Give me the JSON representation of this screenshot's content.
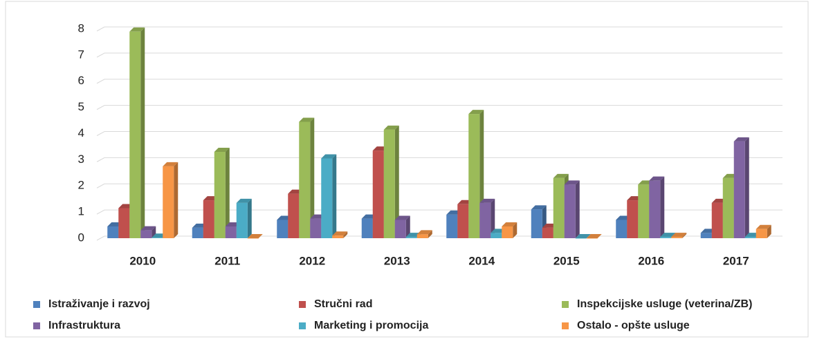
{
  "chart_data": {
    "type": "bar3d",
    "categories": [
      "2010",
      "2011",
      "2012",
      "2013",
      "2014",
      "2015",
      "2016",
      "2017"
    ],
    "series": [
      {
        "name": "Istraživanje i razvoj",
        "color": "#4f81bd",
        "values": [
          0.45,
          0.4,
          0.7,
          0.75,
          0.9,
          1.1,
          0.7,
          0.2
        ]
      },
      {
        "name": "Stručni rad",
        "color": "#c0504d",
        "values": [
          1.15,
          1.45,
          1.7,
          3.35,
          1.3,
          0.4,
          1.45,
          1.35
        ]
      },
      {
        "name": "Inspekcijske usluge (veterina/ZB)",
        "color": "#9bbb59",
        "values": [
          7.9,
          3.3,
          4.45,
          4.15,
          4.75,
          2.3,
          2.05,
          2.3
        ]
      },
      {
        "name": "Infrastruktura",
        "color": "#8064a2",
        "values": [
          0.3,
          0.45,
          0.75,
          0.7,
          1.35,
          2.05,
          2.2,
          3.7
        ]
      },
      {
        "name": "Marketing i promocija",
        "color": "#4bacc6",
        "values": [
          0.02,
          1.35,
          3.05,
          0.05,
          0.2,
          0,
          0.05,
          0.05
        ]
      },
      {
        "name": "Ostalo - opšte usluge",
        "color": "#f79646",
        "values": [
          2.75,
          0,
          0.1,
          0.15,
          0.45,
          0,
          0.05,
          0.35
        ]
      }
    ],
    "ylim": [
      0,
      8
    ],
    "yticks": [
      0,
      1,
      2,
      3,
      4,
      5,
      6,
      7,
      8
    ],
    "grid": true,
    "legend": "bottom"
  }
}
